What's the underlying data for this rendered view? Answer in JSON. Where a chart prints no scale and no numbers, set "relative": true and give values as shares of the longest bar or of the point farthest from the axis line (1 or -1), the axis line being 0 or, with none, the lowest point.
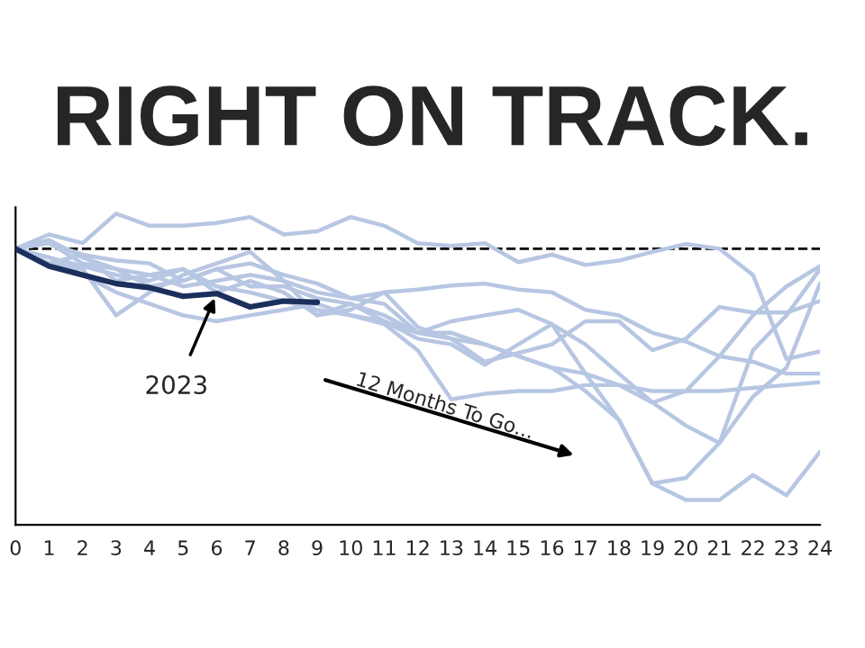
{
  "chart_data": {
    "type": "line",
    "title": "RIGHT ON TRACK.",
    "relative": true,
    "tick_labels": "x",
    "grid": false,
    "legend": false,
    "marker": "none",
    "line_style": "solid",
    "x": [
      0,
      1,
      2,
      3,
      4,
      5,
      6,
      7,
      8,
      9,
      10,
      11,
      12,
      13,
      14,
      15,
      16,
      17,
      18,
      19,
      20,
      21,
      22,
      23,
      24
    ],
    "xlim": [
      0,
      24
    ],
    "xticks": [
      0,
      1,
      2,
      3,
      4,
      5,
      6,
      7,
      8,
      9,
      10,
      11,
      12,
      13,
      14,
      15,
      16,
      17,
      18,
      19,
      20,
      21,
      22,
      23,
      24
    ],
    "series": [
      {
        "color": "#b7c6e2",
        "values": [
          0.887,
          0.933,
          0.905,
          1.0,
          0.961,
          0.961,
          0.97,
          0.989,
          0.933,
          0.943,
          0.989,
          0.961,
          0.905,
          0.896,
          0.905,
          0.844,
          0.868,
          0.835,
          0.849,
          0.877,
          0.902,
          0.887,
          0.803,
          0.533,
          0.557
        ]
      },
      {
        "color": "#b7c6e2",
        "values": [
          0.887,
          0.915,
          0.859,
          0.822,
          0.766,
          0.784,
          0.822,
          0.766,
          0.766,
          0.728,
          0.71,
          0.673,
          0.617,
          0.598,
          0.58,
          0.542,
          0.505,
          0.43,
          0.337,
          0.133,
          0.08,
          0.08,
          0.16,
          0.095,
          0.235
        ]
      },
      {
        "color": "#b7c6e2",
        "values": [
          0.887,
          0.84,
          0.822,
          0.673,
          0.747,
          0.803,
          0.84,
          0.877,
          0.784,
          0.673,
          0.71,
          0.654,
          0.617,
          0.654,
          0.673,
          0.691,
          0.645,
          0.486,
          0.337,
          0.133,
          0.151,
          0.263,
          0.561,
          0.673,
          0.822
        ]
      },
      {
        "color": "#b7c6e2",
        "values": [
          0.887,
          0.859,
          0.831,
          0.803,
          0.784,
          0.822,
          0.766,
          0.747,
          0.719,
          0.691,
          0.673,
          0.654,
          0.598,
          0.58,
          0.514,
          0.58,
          0.645,
          0.58,
          0.486,
          0.393,
          0.319,
          0.263,
          0.412,
          0.505,
          0.775
        ]
      },
      {
        "color": "#b7c6e2",
        "values": [
          0.887,
          0.859,
          0.803,
          0.747,
          0.71,
          0.673,
          0.654,
          0.673,
          0.691,
          0.71,
          0.673,
          0.645,
          0.561,
          0.403,
          0.421,
          0.43,
          0.43,
          0.449,
          0.449,
          0.43,
          0.43,
          0.43,
          0.44,
          0.449,
          0.458
        ]
      },
      {
        "color": "#b7c6e2",
        "values": [
          0.887,
          0.84,
          0.868,
          0.849,
          0.84,
          0.784,
          0.822,
          0.84,
          0.803,
          0.775,
          0.728,
          0.747,
          0.756,
          0.769,
          0.775,
          0.756,
          0.747,
          0.691,
          0.673,
          0.617,
          0.589,
          0.542,
          0.524,
          0.486,
          0.486
        ]
      },
      {
        "color": "#b7c6e2",
        "values": [
          0.887,
          0.905,
          0.868,
          0.784,
          0.803,
          0.822,
          0.747,
          0.784,
          0.747,
          0.673,
          0.691,
          0.747,
          0.635,
          0.598,
          0.524,
          0.552,
          0.58,
          0.654,
          0.654,
          0.561,
          0.598,
          0.7,
          0.682,
          0.682,
          0.719
        ]
      },
      {
        "color": "#b7c6e2",
        "values": [
          0.887,
          0.905,
          0.84,
          0.822,
          0.803,
          0.766,
          0.784,
          0.803,
          0.784,
          0.747,
          0.728,
          0.71,
          0.617,
          0.617,
          0.58,
          0.542,
          0.505,
          0.486,
          0.449,
          0.393,
          0.43,
          0.542,
          0.673,
          0.766,
          0.831
        ]
      },
      {
        "color": "#1b2f5c",
        "x": [
          0,
          1,
          2,
          3,
          4,
          5,
          6,
          7,
          8,
          9
        ],
        "values": [
          0.887,
          0.831,
          0.803,
          0.775,
          0.762,
          0.734,
          0.743,
          0.7,
          0.719,
          0.715
        ]
      }
    ],
    "ref_lines": [
      {
        "axis": "y",
        "value": 0.887,
        "color": "#000000",
        "line_style": "dashed"
      }
    ],
    "annotations": [
      {
        "text": "2023",
        "x": 6,
        "y": 0.743
      },
      "12 Months To Go..."
    ]
  }
}
